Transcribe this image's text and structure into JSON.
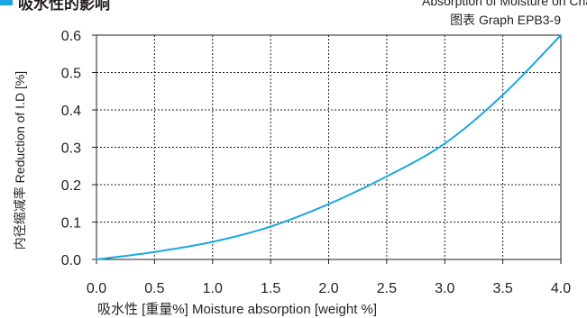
{
  "header": {
    "title": "吸水性的影响",
    "caption": "Absorption of Moisture on Change"
  },
  "chart_data": {
    "type": "line",
    "title": "图表 Graph EPB3-9",
    "xlabel": "吸水性 [重量%]  Moisture absorption [weight %]",
    "ylabel": "内径缩减率 Reduction of I.D [%]",
    "xlim": [
      0.0,
      4.0
    ],
    "ylim": [
      0.0,
      0.6
    ],
    "x_ticks": [
      "0.0",
      "0.5",
      "1.0",
      "1.5",
      "2.0",
      "2.5",
      "3.0",
      "3.5",
      "4.0"
    ],
    "y_ticks": [
      "0.0",
      "0.1",
      "0.2",
      "0.3",
      "0.4",
      "0.5",
      "0.6"
    ],
    "grid": true,
    "series": [
      {
        "x": [
          0.0,
          0.5,
          1.0,
          1.5,
          2.0,
          2.5,
          3.0,
          3.5,
          4.0
        ],
        "values": [
          0.0,
          0.02,
          0.047,
          0.088,
          0.148,
          0.222,
          0.31,
          0.44,
          0.6
        ],
        "color": "#1aa7e0"
      }
    ]
  }
}
